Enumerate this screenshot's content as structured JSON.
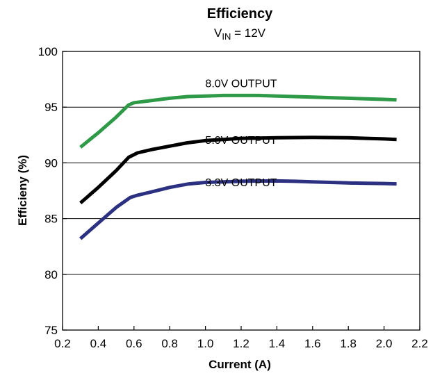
{
  "chart_data": {
    "type": "line",
    "title": "Efficiency",
    "subtitle": {
      "prefix": "V",
      "subscript": "IN",
      "suffix": " = 12V"
    },
    "xlabel": "Current (A)",
    "ylabel": "Efficieny (%)",
    "xlim": [
      0.2,
      2.2
    ],
    "ylim": [
      75,
      100
    ],
    "xticks": [
      0.2,
      0.4,
      0.6,
      0.8,
      1.0,
      1.2,
      1.4,
      1.6,
      1.8,
      2.0,
      2.2
    ],
    "xtick_labels": [
      "0.2",
      "0.4",
      "0.6",
      "0.8",
      "1.0",
      "1.2",
      "1.4",
      "1.6",
      "1.8",
      "2.0",
      "2.2"
    ],
    "yticks": [
      75,
      80,
      85,
      90,
      95,
      100
    ],
    "ytick_labels": [
      "75",
      "80",
      "85",
      "90",
      "95",
      "100"
    ],
    "grid": "horizontal",
    "legend": "inline labels",
    "series": [
      {
        "name": "8.0V OUTPUT",
        "color": "#2e9a47",
        "x": [
          0.3,
          0.4,
          0.5,
          0.57,
          0.6,
          0.7,
          0.8,
          0.9,
          1.0,
          1.1,
          1.2,
          1.3,
          1.4,
          1.5,
          1.6,
          1.7,
          1.8,
          1.9,
          2.0,
          2.07
        ],
        "y": [
          91.4,
          92.7,
          94.1,
          95.2,
          95.4,
          95.6,
          95.8,
          95.95,
          96.0,
          96.05,
          96.05,
          96.05,
          96.0,
          95.95,
          95.9,
          95.85,
          95.8,
          95.75,
          95.7,
          95.65
        ]
      },
      {
        "name": "5.0V OUTPUT",
        "color": "#000000",
        "x": [
          0.3,
          0.4,
          0.5,
          0.57,
          0.62,
          0.7,
          0.8,
          0.9,
          1.0,
          1.1,
          1.2,
          1.3,
          1.4,
          1.5,
          1.6,
          1.7,
          1.8,
          1.9,
          2.0,
          2.07
        ],
        "y": [
          86.4,
          87.8,
          89.3,
          90.5,
          90.9,
          91.2,
          91.5,
          91.8,
          92.0,
          92.1,
          92.2,
          92.22,
          92.25,
          92.27,
          92.28,
          92.27,
          92.25,
          92.2,
          92.15,
          92.1
        ]
      },
      {
        "name": "3.3V OUTPUT",
        "color": "#2b3080",
        "x": [
          0.3,
          0.4,
          0.5,
          0.58,
          0.62,
          0.7,
          0.8,
          0.9,
          1.0,
          1.1,
          1.2,
          1.3,
          1.4,
          1.5,
          1.6,
          1.7,
          1.8,
          1.9,
          2.0,
          2.07
        ],
        "y": [
          83.2,
          84.6,
          86.0,
          86.9,
          87.1,
          87.4,
          87.8,
          88.1,
          88.25,
          88.3,
          88.35,
          88.37,
          88.38,
          88.35,
          88.3,
          88.25,
          88.2,
          88.17,
          88.15,
          88.12
        ]
      }
    ]
  }
}
